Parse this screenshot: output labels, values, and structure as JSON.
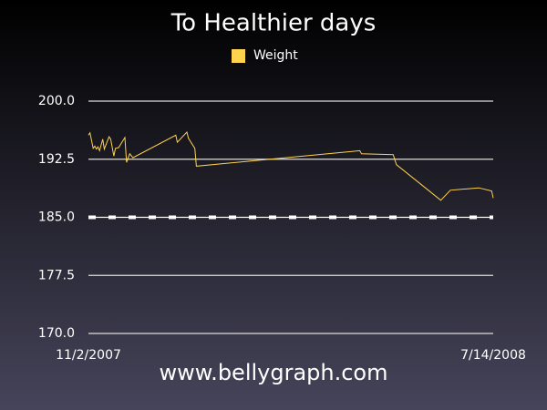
{
  "chart_data": {
    "type": "line",
    "title": "To Healthier days",
    "series": [
      {
        "name": "Weight",
        "color": "#ffd34d",
        "x": [
          0,
          1,
          3,
          4,
          5,
          6,
          7,
          9,
          10,
          13,
          14,
          16,
          17,
          19,
          23,
          24,
          26,
          28,
          55,
          56,
          62,
          63,
          67,
          68,
          171,
          172,
          192,
          194,
          222,
          228,
          246,
          254,
          255
        ],
        "values": [
          195.6,
          195.9,
          193.9,
          194.2,
          193.8,
          194.1,
          193.6,
          195.1,
          193.8,
          195.4,
          195.1,
          192.9,
          193.9,
          194.0,
          195.3,
          192.1,
          193.2,
          192.7,
          195.6,
          194.7,
          196.0,
          195.2,
          193.9,
          191.6,
          193.6,
          193.2,
          193.1,
          191.8,
          187.2,
          188.5,
          188.8,
          188.4,
          187.5
        ]
      }
    ],
    "target": 185,
    "xlim": [
      0,
      255
    ],
    "xticks": [
      {
        "value": 0,
        "label": "11/2/2007"
      },
      {
        "value": 255,
        "label": "7/14/2008"
      }
    ],
    "ylim": [
      170,
      200
    ],
    "yticks": [
      {
        "value": 170,
        "label": "170.0"
      },
      {
        "value": 177.5,
        "label": "177.5"
      },
      {
        "value": 185,
        "label": "185.0"
      },
      {
        "value": 192.5,
        "label": "192.5"
      },
      {
        "value": 200,
        "label": "200.0"
      }
    ],
    "grid": true,
    "source": "www.bellygraph.com"
  }
}
